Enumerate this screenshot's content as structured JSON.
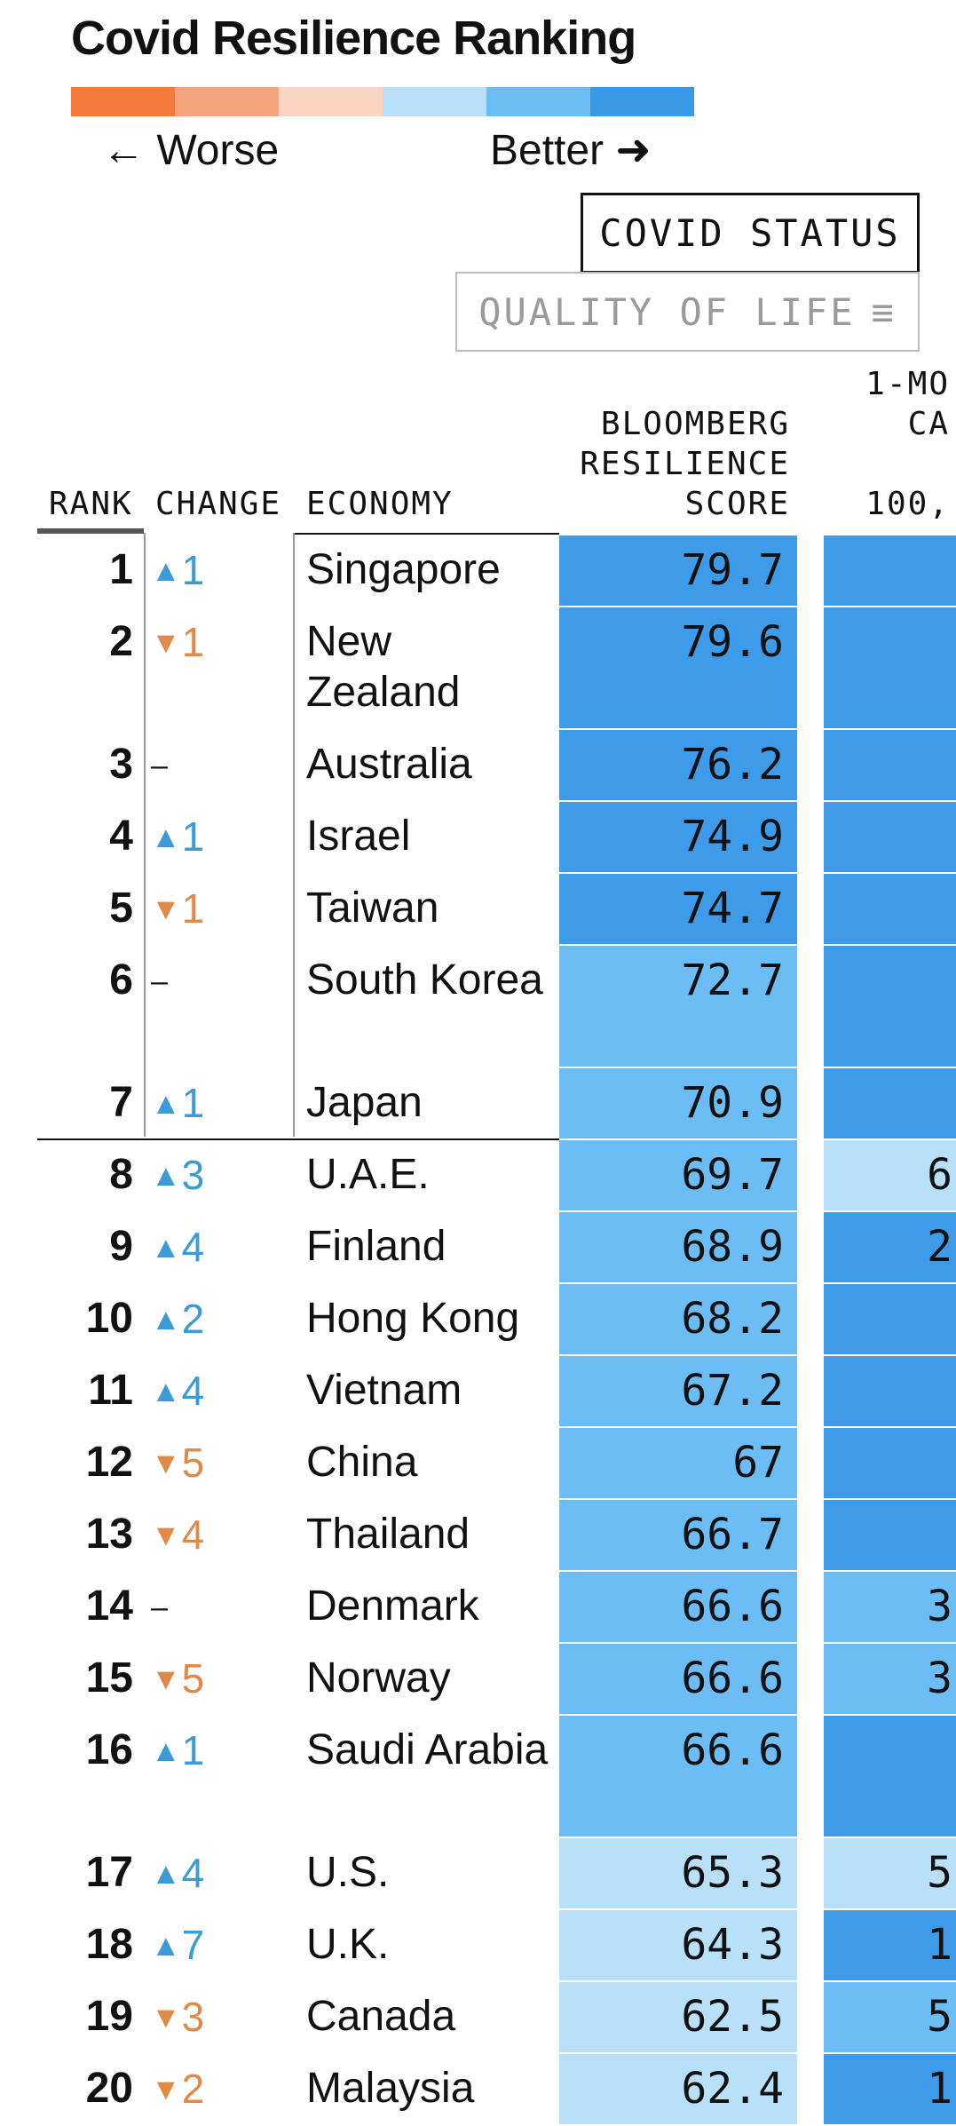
{
  "title": "Covid Resilience Ranking",
  "legend": {
    "colors": [
      "#f27a3c",
      "#f4a57c",
      "#f9d4c0",
      "#b8e0f8",
      "#6dbdf5",
      "#3a9ae8"
    ],
    "worse_label": "← Worse",
    "better_label": "Better ➜"
  },
  "tabs": {
    "active": "COVID STATUS",
    "inactive": "QUALITY OF LIFE",
    "filter_icon": "filter-icon",
    "filter_glyph": "≡"
  },
  "headers": {
    "rank": "RANK",
    "change": "CHANGE",
    "economy": "ECONOMY",
    "score_lines": [
      "BLOOMBERG",
      "RESILIENCE",
      "SCORE"
    ],
    "cut_lines": [
      "1-MO",
      "CA",
      "100,"
    ]
  },
  "rows": [
    {
      "rank": "1",
      "dir": "up",
      "change": "1",
      "economy": "Singapore",
      "score": "79.7",
      "score_color": "#3d9be9",
      "cut": "",
      "cut_color": "#3d9be9"
    },
    {
      "rank": "2",
      "dir": "down",
      "change": "1",
      "economy": "New Zealand",
      "score": "79.6",
      "score_color": "#3d9be9",
      "cut": "",
      "cut_color": "#3d9be9"
    },
    {
      "rank": "3",
      "dir": "same",
      "change": "",
      "economy": "Australia",
      "score": "76.2",
      "score_color": "#3d9be9",
      "cut": "",
      "cut_color": "#3d9be9"
    },
    {
      "rank": "4",
      "dir": "up",
      "change": "1",
      "economy": "Israel",
      "score": "74.9",
      "score_color": "#3d9be9",
      "cut": "",
      "cut_color": "#3d9be9"
    },
    {
      "rank": "5",
      "dir": "down",
      "change": "1",
      "economy": "Taiwan",
      "score": "74.7",
      "score_color": "#3d9be9",
      "cut": "",
      "cut_color": "#3d9be9"
    },
    {
      "rank": "6",
      "dir": "same",
      "change": "",
      "economy": "South Korea",
      "score": "72.7",
      "score_color": "#6cbdf5",
      "cut": "",
      "cut_color": "#3d9be9"
    },
    {
      "rank": "7",
      "dir": "up",
      "change": "1",
      "economy": "Japan",
      "score": "70.9",
      "score_color": "#6cbdf5",
      "cut": "",
      "cut_color": "#3d9be9"
    },
    {
      "rank": "8",
      "dir": "up",
      "change": "3",
      "economy": "U.A.E.",
      "score": "69.7",
      "score_color": "#6cbdf5",
      "cut": "6",
      "cut_color": "#b8e0f8"
    },
    {
      "rank": "9",
      "dir": "up",
      "change": "4",
      "economy": "Finland",
      "score": "68.9",
      "score_color": "#6cbdf5",
      "cut": "2",
      "cut_color": "#3d9be9"
    },
    {
      "rank": "10",
      "dir": "up",
      "change": "2",
      "economy": "Hong Kong",
      "score": "68.2",
      "score_color": "#6cbdf5",
      "cut": "",
      "cut_color": "#3d9be9"
    },
    {
      "rank": "11",
      "dir": "up",
      "change": "4",
      "economy": "Vietnam",
      "score": "67.2",
      "score_color": "#6cbdf5",
      "cut": "",
      "cut_color": "#3d9be9"
    },
    {
      "rank": "12",
      "dir": "down",
      "change": "5",
      "economy": "China",
      "score": "67",
      "score_color": "#6cbdf5",
      "cut": "",
      "cut_color": "#3d9be9"
    },
    {
      "rank": "13",
      "dir": "down",
      "change": "4",
      "economy": "Thailand",
      "score": "66.7",
      "score_color": "#6cbdf5",
      "cut": "",
      "cut_color": "#3d9be9"
    },
    {
      "rank": "14",
      "dir": "same",
      "change": "",
      "economy": "Denmark",
      "score": "66.6",
      "score_color": "#6cbdf5",
      "cut": "3",
      "cut_color": "#6cbdf5"
    },
    {
      "rank": "15",
      "dir": "down",
      "change": "5",
      "economy": "Norway",
      "score": "66.6",
      "score_color": "#6cbdf5",
      "cut": "3",
      "cut_color": "#6cbdf5"
    },
    {
      "rank": "16",
      "dir": "up",
      "change": "1",
      "economy": "Saudi Arabia",
      "score": "66.6",
      "score_color": "#6cbdf5",
      "cut": "",
      "cut_color": "#3d9be9"
    },
    {
      "rank": "17",
      "dir": "up",
      "change": "4",
      "economy": "U.S.",
      "score": "65.3",
      "score_color": "#b8e0f8",
      "cut": "5",
      "cut_color": "#b8e0f8"
    },
    {
      "rank": "18",
      "dir": "up",
      "change": "7",
      "economy": "U.K.",
      "score": "64.3",
      "score_color": "#b8e0f8",
      "cut": "1",
      "cut_color": "#3d9be9"
    },
    {
      "rank": "19",
      "dir": "down",
      "change": "3",
      "economy": "Canada",
      "score": "62.5",
      "score_color": "#b8e0f8",
      "cut": "5",
      "cut_color": "#6cbdf5"
    },
    {
      "rank": "20",
      "dir": "down",
      "change": "2",
      "economy": "Malaysia",
      "score": "62.4",
      "score_color": "#b8e0f8",
      "cut": "1",
      "cut_color": "#3d9be9"
    }
  ]
}
